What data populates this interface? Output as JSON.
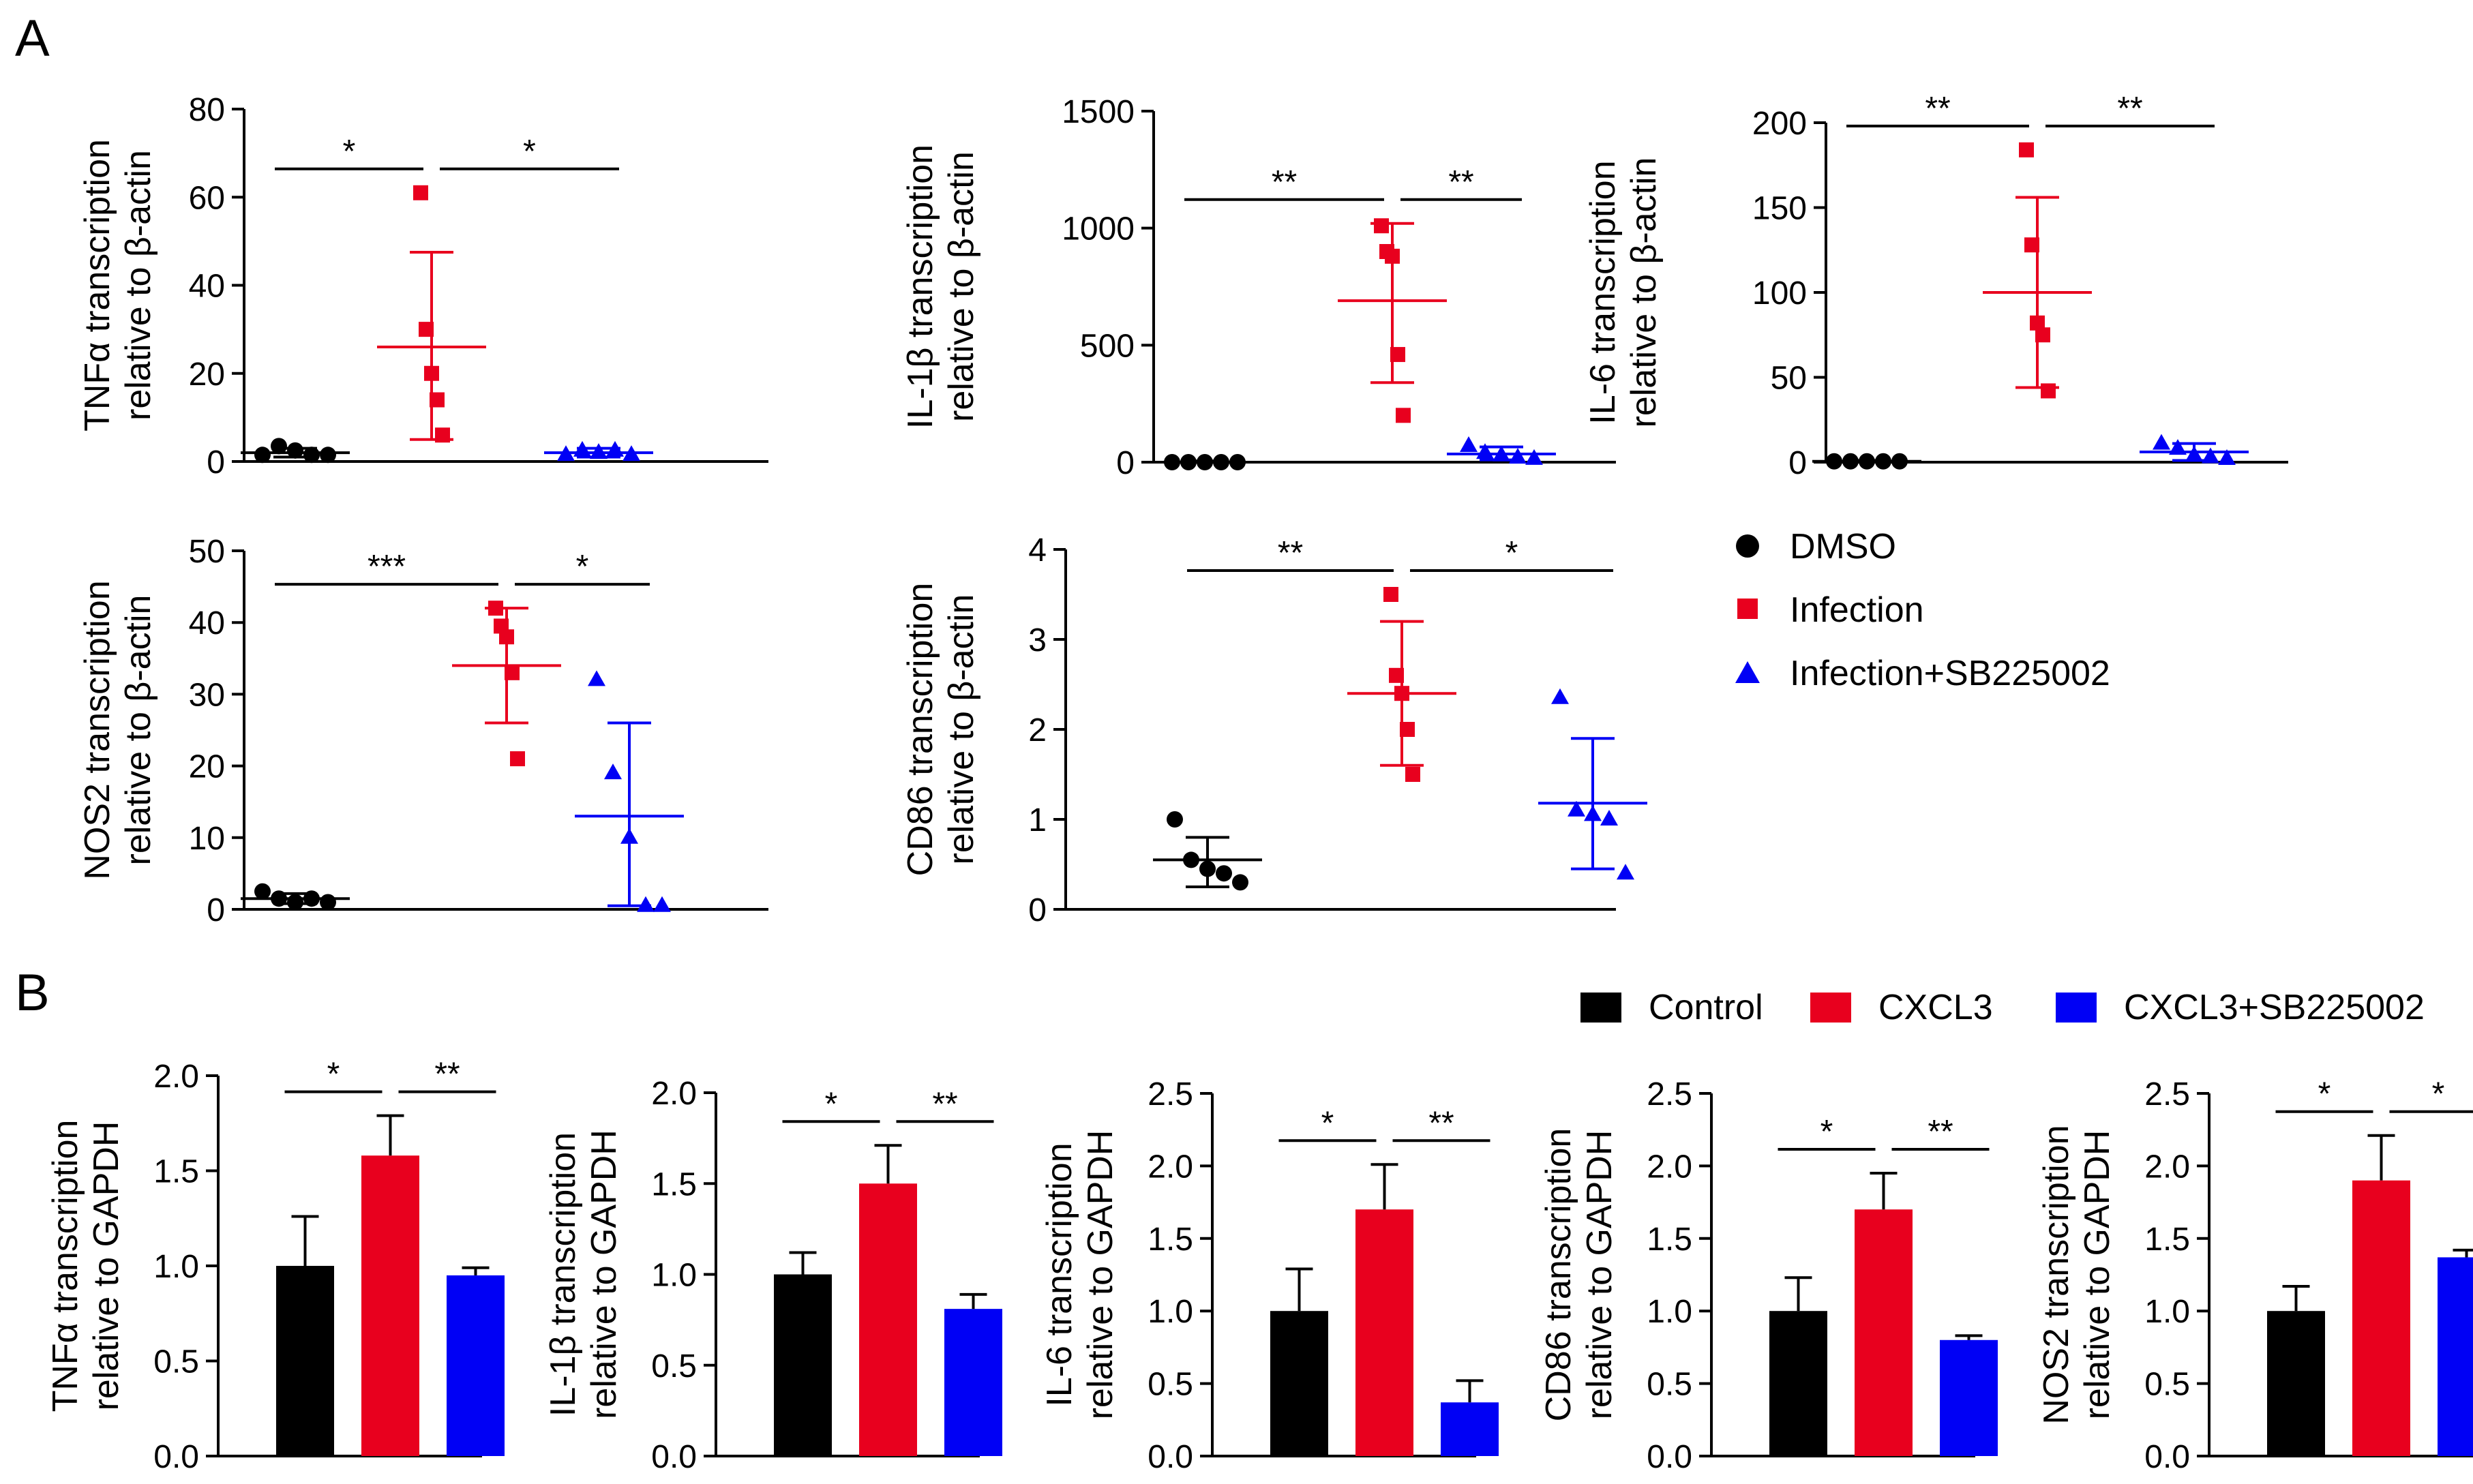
{
  "panel_labels": {
    "a": "A",
    "b": "B"
  },
  "legend_a": [
    {
      "label": "DMSO",
      "color": "#000000",
      "marker": "circle"
    },
    {
      "label": "Infection",
      "color": "#e8001e",
      "marker": "square"
    },
    {
      "label": "Infection+SB225002",
      "color": "#0000f5",
      "marker": "triangle"
    }
  ],
  "legend_b": [
    {
      "label": "Control",
      "color": "#000000"
    },
    {
      "label": "CXCL3",
      "color": "#e8001e"
    },
    {
      "label": "CXCL3+SB225002",
      "color": "#0000f5"
    }
  ],
  "chart_data": [
    {
      "type": "scatter",
      "panel": "A",
      "title": "TNFα",
      "ylabel": [
        "TNFα transcription",
        "relative to β-actin"
      ],
      "ylim": [
        0,
        80
      ],
      "yticks": [
        0,
        20,
        40,
        60,
        80
      ],
      "groups": [
        "DMSO",
        "Infection",
        "Infection+SB225002"
      ],
      "points": [
        [
          1.5,
          3.5,
          2.5,
          1.5,
          1.5
        ],
        [
          61,
          30,
          20,
          14,
          6
        ],
        [
          1.5,
          2.5,
          2,
          2.5,
          1.5
        ]
      ],
      "mean": [
        2,
        26,
        2
      ],
      "sd_low": [
        1,
        5,
        1
      ],
      "sd_high": [
        3,
        47.5,
        3
      ],
      "sig": [
        {
          "from": 0,
          "to": 1,
          "text": "*"
        },
        {
          "from": 1,
          "to": 2,
          "text": "*"
        }
      ]
    },
    {
      "type": "scatter",
      "panel": "A",
      "title": "IL-1β",
      "ylabel": [
        "IL-1β transcription",
        "relative to β-actin"
      ],
      "ylim": [
        0,
        1500
      ],
      "yticks": [
        0,
        500,
        1000,
        1500
      ],
      "groups": [
        "DMSO",
        "Infection",
        "Infection+SB225002"
      ],
      "points": [
        [
          0,
          0,
          0,
          0,
          0
        ],
        [
          1010,
          900,
          880,
          460,
          200
        ],
        [
          70,
          40,
          30,
          20,
          15
        ]
      ],
      "mean": [
        0,
        690,
        35
      ],
      "sd_low": [
        0,
        340,
        10
      ],
      "sd_high": [
        5,
        1020,
        65
      ],
      "sig": [
        {
          "from": 0,
          "to": 1,
          "text": "**"
        },
        {
          "from": 1,
          "to": 2,
          "text": "**"
        }
      ]
    },
    {
      "type": "scatter",
      "panel": "A",
      "title": "IL-6",
      "ylabel": [
        "IL-6 transcription",
        "relative to β-actin"
      ],
      "ylim": [
        0,
        200
      ],
      "yticks": [
        0,
        50,
        100,
        150,
        200
      ],
      "groups": [
        "DMSO",
        "Infection",
        "Infection+SB225002"
      ],
      "points": [
        [
          0.5,
          0.5,
          0.5,
          0.5,
          0.5
        ],
        [
          184,
          128,
          82,
          75,
          42
        ],
        [
          11,
          8,
          4,
          3,
          2
        ]
      ],
      "mean": [
        0.5,
        100,
        6
      ],
      "sd_low": [
        0,
        44,
        1
      ],
      "sd_high": [
        1,
        156,
        11
      ],
      "sig": [
        {
          "from": 0,
          "to": 1,
          "text": "**"
        },
        {
          "from": 1,
          "to": 2,
          "text": "**"
        }
      ]
    },
    {
      "type": "scatter",
      "panel": "A",
      "title": "NOS2",
      "ylabel": [
        "NOS2 transcription",
        "relative to β-actin"
      ],
      "ylim": [
        0,
        50
      ],
      "yticks": [
        0,
        10,
        20,
        30,
        40,
        50
      ],
      "groups": [
        "DMSO",
        "Infection",
        "Infection+SB225002"
      ],
      "points": [
        [
          2.5,
          1.5,
          1,
          1.5,
          1
        ],
        [
          42,
          39.5,
          38,
          33,
          21
        ],
        [
          32,
          19,
          10,
          0.5,
          0.5
        ]
      ],
      "mean": [
        1.5,
        34,
        13
      ],
      "sd_low": [
        0.8,
        26,
        0.5
      ],
      "sd_high": [
        2.2,
        42,
        26
      ],
      "sig": [
        {
          "from": 0,
          "to": 1,
          "text": "***"
        },
        {
          "from": 1,
          "to": 2,
          "text": "*"
        }
      ]
    },
    {
      "type": "scatter",
      "panel": "A",
      "title": "CD86",
      "ylabel": [
        "CD86 transcription",
        "relative to β-actin"
      ],
      "ylim": [
        0,
        4
      ],
      "yticks": [
        0,
        1,
        2,
        3,
        4
      ],
      "groups": [
        "DMSO",
        "Infection",
        "Infection+SB225002"
      ],
      "points": [
        [
          1.0,
          0.55,
          0.45,
          0.4,
          0.3
        ],
        [
          3.5,
          2.6,
          2.4,
          2.0,
          1.5
        ],
        [
          2.35,
          1.1,
          1.05,
          1.0,
          0.4
        ]
      ],
      "mean": [
        0.55,
        2.4,
        1.18
      ],
      "sd_low": [
        0.25,
        1.6,
        0.45
      ],
      "sd_high": [
        0.8,
        3.2,
        1.9
      ],
      "sig": [
        {
          "from": 0,
          "to": 1,
          "text": "**"
        },
        {
          "from": 1,
          "to": 2,
          "text": "*"
        }
      ]
    },
    {
      "type": "bar",
      "panel": "B",
      "title": "TNFα",
      "ylabel": [
        "TNFα transcription",
        "relative to GAPDH"
      ],
      "ylim": [
        0,
        2.0
      ],
      "yticks": [
        "0.0",
        "0.5",
        "1.0",
        "1.5",
        "2.0"
      ],
      "categories": [
        "Control",
        "CXCL3",
        "CXCL3+SB225002"
      ],
      "values": [
        1.0,
        1.58,
        0.95
      ],
      "errors": [
        0.26,
        0.21,
        0.04
      ],
      "sig": [
        {
          "from": 0,
          "to": 1,
          "text": "*"
        },
        {
          "from": 1,
          "to": 2,
          "text": "**"
        }
      ]
    },
    {
      "type": "bar",
      "panel": "B",
      "title": "IL-1β",
      "ylabel": [
        "IL-1β transcription",
        "relative to GAPDH"
      ],
      "ylim": [
        0,
        2.0
      ],
      "yticks": [
        "0.0",
        "0.5",
        "1.0",
        "1.5",
        "2.0"
      ],
      "categories": [
        "Control",
        "CXCL3",
        "CXCL3+SB225002"
      ],
      "values": [
        1.0,
        1.5,
        0.81
      ],
      "errors": [
        0.12,
        0.21,
        0.08
      ],
      "sig": [
        {
          "from": 0,
          "to": 1,
          "text": "*"
        },
        {
          "from": 1,
          "to": 2,
          "text": "**"
        }
      ]
    },
    {
      "type": "bar",
      "panel": "B",
      "title": "IL-6",
      "ylabel": [
        "IL-6 transcription",
        "relative to GAPDH"
      ],
      "ylim": [
        0,
        2.5
      ],
      "yticks": [
        "0.0",
        "0.5",
        "1.0",
        "1.5",
        "2.0",
        "2.5"
      ],
      "categories": [
        "Control",
        "CXCL3",
        "CXCL3+SB225002"
      ],
      "values": [
        1.0,
        1.7,
        0.37
      ],
      "errors": [
        0.29,
        0.31,
        0.15
      ],
      "sig": [
        {
          "from": 0,
          "to": 1,
          "text": "*"
        },
        {
          "from": 1,
          "to": 2,
          "text": "**"
        }
      ]
    },
    {
      "type": "bar",
      "panel": "B",
      "title": "CD86",
      "ylabel": [
        "CD86 transcription",
        "relative to GAPDH"
      ],
      "ylim": [
        0,
        2.5
      ],
      "yticks": [
        "0.0",
        "0.5",
        "1.0",
        "1.5",
        "2.0",
        "2.5"
      ],
      "categories": [
        "Control",
        "CXCL3",
        "CXCL3+SB225002"
      ],
      "values": [
        1.0,
        1.7,
        0.8
      ],
      "errors": [
        0.23,
        0.25,
        0.03
      ],
      "sig": [
        {
          "from": 0,
          "to": 1,
          "text": "*"
        },
        {
          "from": 1,
          "to": 2,
          "text": "**"
        }
      ]
    },
    {
      "type": "bar",
      "panel": "B",
      "title": "NOS2",
      "ylabel": [
        "NOS2 transcription",
        "relative to GAPDH"
      ],
      "ylim": [
        0,
        2.5
      ],
      "yticks": [
        "0.0",
        "0.5",
        "1.0",
        "1.5",
        "2.0",
        "2.5"
      ],
      "categories": [
        "Control",
        "CXCL3",
        "CXCL3+SB225002"
      ],
      "values": [
        1.0,
        1.9,
        1.37
      ],
      "errors": [
        0.17,
        0.31,
        0.05
      ],
      "sig": [
        {
          "from": 0,
          "to": 1,
          "text": "*"
        },
        {
          "from": 1,
          "to": 2,
          "text": "*"
        }
      ]
    }
  ]
}
